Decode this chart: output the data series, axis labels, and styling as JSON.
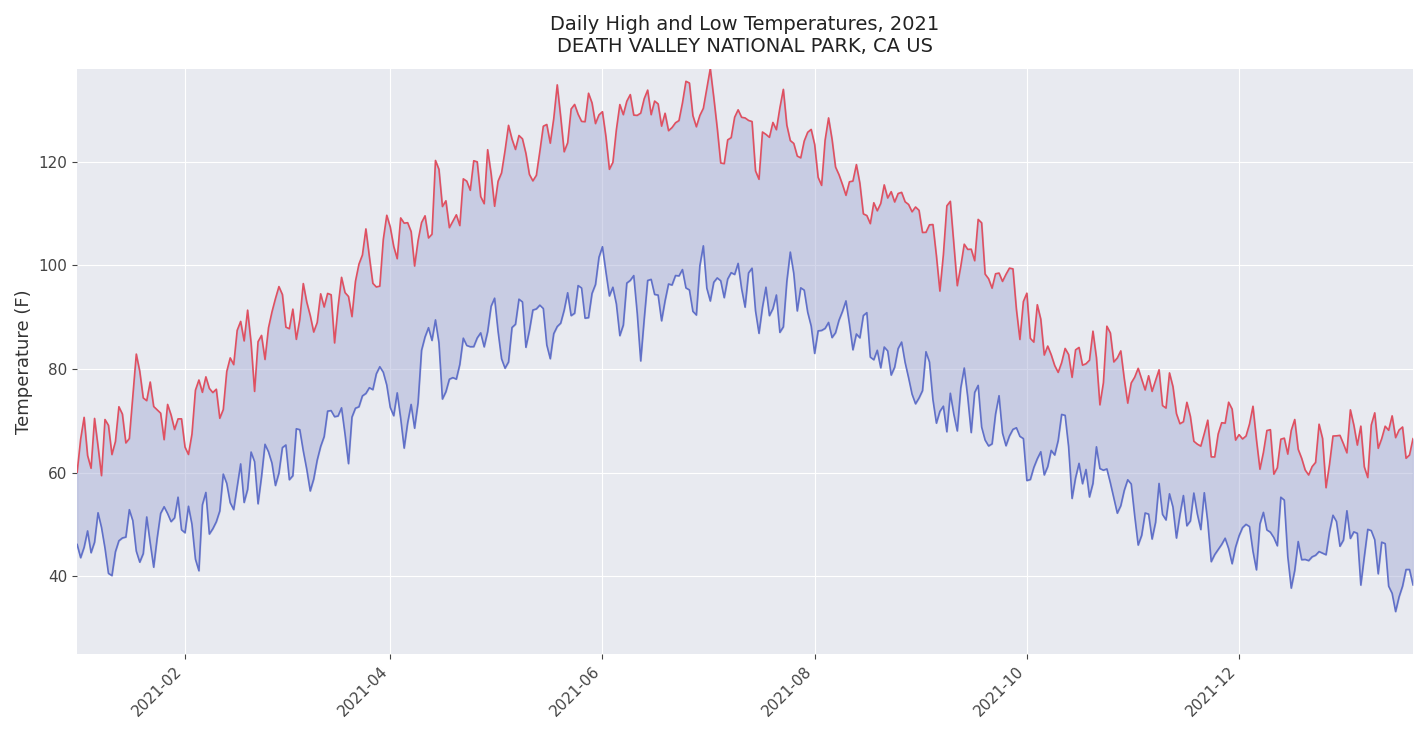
{
  "title_line1": "Daily High and Low Temperatures, 2021",
  "title_line2": "DEATH VALLEY NATIONAL PARK, CA US",
  "ylabel": "Temperature (F)",
  "bg_color": "#e8eaf0",
  "fill_color": "#aab0d8",
  "fill_alpha": 0.5,
  "high_color": "#e05060",
  "low_color": "#6070c8",
  "line_width": 1.2,
  "ylim": [
    25,
    138
  ],
  "yticks": [
    40,
    60,
    80,
    100,
    120
  ],
  "fig_bg": "#ffffff"
}
